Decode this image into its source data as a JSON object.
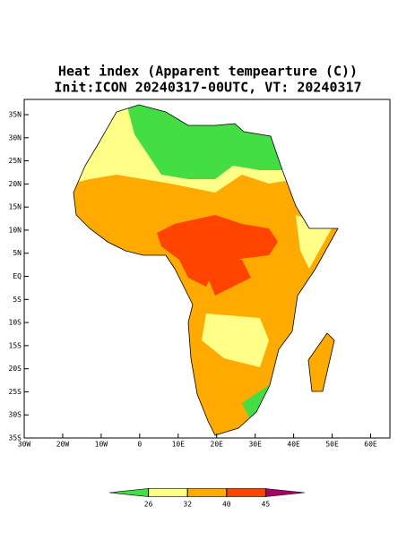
{
  "map": {
    "title": "Heat index (Apparent tempearture (C))",
    "subtitle": "Init:ICON 20240317-00UTC, VT: 20240317",
    "xlim": [
      -30,
      65
    ],
    "ylim": [
      -35,
      38.3
    ],
    "xticks": [
      {
        "value": -30,
        "label": "30W"
      },
      {
        "value": -20,
        "label": "20W"
      },
      {
        "value": -10,
        "label": "10W"
      },
      0,
      {
        "value": 10,
        "label": "10E"
      },
      {
        "value": 20,
        "label": "20E"
      },
      {
        "value": 30,
        "label": "30E"
      },
      {
        "value": 40,
        "label": "40E"
      },
      {
        "value": 50,
        "label": "50E"
      },
      {
        "value": 60,
        "label": "60E"
      }
    ],
    "yticks": [
      {
        "value": 35,
        "label": "35N"
      },
      {
        "value": 30,
        "label": "30N"
      },
      {
        "value": 25,
        "label": "25N"
      },
      {
        "value": 20,
        "label": "20N"
      },
      {
        "value": 15,
        "label": "15N"
      },
      {
        "value": 10,
        "label": "10N"
      },
      {
        "value": 5,
        "label": "5N"
      },
      {
        "value": 0,
        "label": "EQ"
      },
      {
        "value": -5,
        "label": "5S"
      },
      {
        "value": -10,
        "label": "10S"
      },
      {
        "value": -15,
        "label": "15S"
      },
      {
        "value": -20,
        "label": "20S"
      },
      {
        "value": -25,
        "label": "25S"
      },
      {
        "value": -30,
        "label": "30S"
      },
      {
        "value": -35,
        "label": "35S"
      }
    ],
    "colorbar": {
      "ticks": [
        26,
        32,
        40,
        45
      ],
      "colors": [
        "#44dd44",
        "#ffff88",
        "#ffaa00",
        "#ff4400",
        "#aa0066"
      ]
    }
  }
}
